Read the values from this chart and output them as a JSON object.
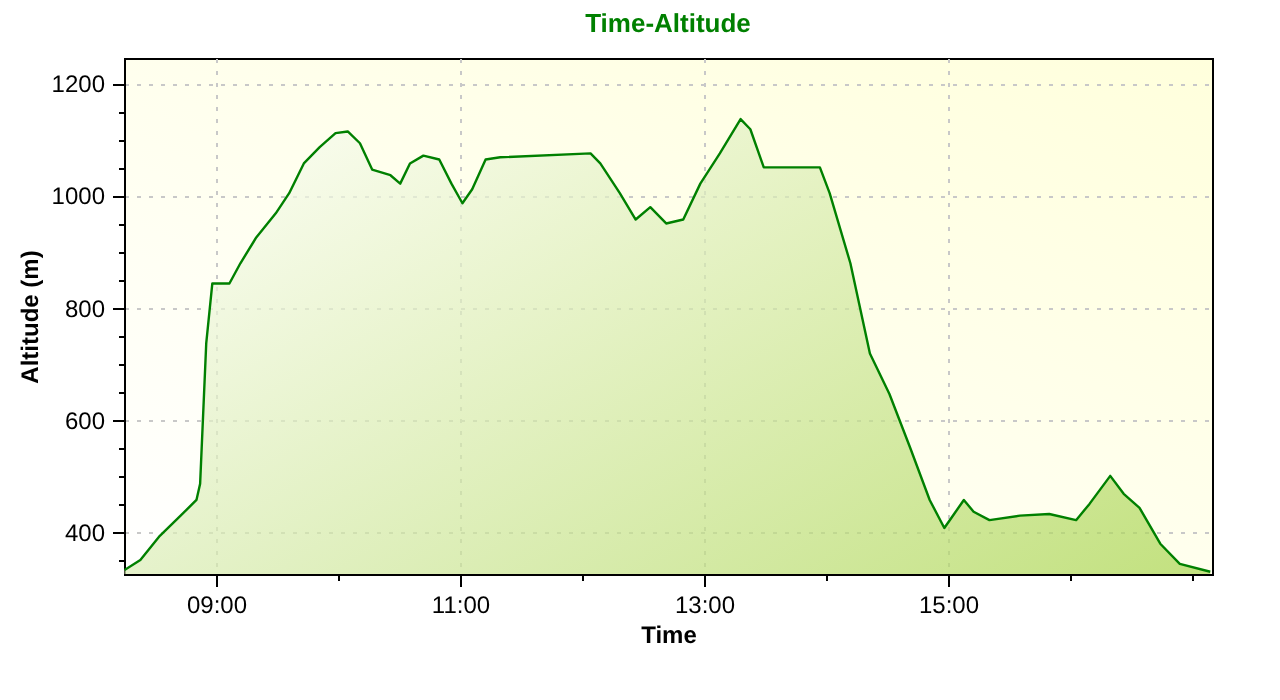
{
  "chart_data": {
    "type": "area",
    "title": "Time-Altitude",
    "xlabel": "Time",
    "ylabel": "Altitude (m)",
    "x": [
      8.25,
      8.38,
      8.54,
      8.71,
      8.84,
      8.87,
      8.92,
      8.97,
      9.11,
      9.2,
      9.33,
      9.49,
      9.6,
      9.72,
      9.85,
      9.98,
      10.08,
      10.18,
      10.28,
      10.43,
      10.51,
      10.59,
      10.7,
      10.83,
      10.93,
      11.02,
      11.1,
      11.21,
      11.33,
      12.07,
      12.15,
      12.31,
      12.44,
      12.56,
      12.69,
      12.83,
      12.97,
      13.13,
      13.3,
      13.38,
      13.49,
      13.95,
      14.03,
      14.2,
      14.36,
      14.52,
      14.69,
      14.85,
      14.97,
      15.05,
      15.13,
      15.21,
      15.34,
      15.59,
      15.83,
      16.05,
      16.16,
      16.33,
      16.44,
      16.57,
      16.74,
      16.9,
      17.15
    ],
    "series": [
      {
        "color": "#008000",
        "values": [
          332,
          350,
          393,
          429,
          457,
          486,
          736,
          843,
          843,
          879,
          925,
          968,
          1004,
          1057,
          1086,
          1111,
          1114,
          1093,
          1046,
          1036,
          1021,
          1057,
          1071,
          1064,
          1021,
          986,
          1011,
          1064,
          1068,
          1075,
          1057,
          1004,
          957,
          979,
          950,
          957,
          1021,
          1075,
          1136,
          1118,
          1050,
          1050,
          1004,
          879,
          718,
          646,
          550,
          457,
          407,
          432,
          457,
          436,
          421,
          429,
          432,
          421,
          450,
          500,
          468,
          443,
          379,
          343,
          329
        ]
      }
    ],
    "xlim": [
      8.246,
      17.164
    ],
    "xticks": [
      {
        "value": 9,
        "label": "09:00"
      },
      {
        "value": 10,
        "label": null
      },
      {
        "value": 11,
        "label": "11:00"
      },
      {
        "value": 12,
        "label": null
      },
      {
        "value": 13,
        "label": "13:00"
      },
      {
        "value": 14,
        "label": null
      },
      {
        "value": 15,
        "label": "15:00"
      },
      {
        "value": 16,
        "label": null
      },
      {
        "value": 17,
        "label": null
      }
    ],
    "ylim": [
      325,
      1245
    ],
    "yticks": [
      {
        "value": 350,
        "label": null
      },
      400,
      {
        "value": 450,
        "label": null
      },
      {
        "value": 500,
        "label": null
      },
      {
        "value": 550,
        "label": null
      },
      600,
      {
        "value": 650,
        "label": null
      },
      {
        "value": 700,
        "label": null
      },
      {
        "value": 750,
        "label": null
      },
      800,
      {
        "value": 850,
        "label": null
      },
      {
        "value": 900,
        "label": null
      },
      {
        "value": 950,
        "label": null
      },
      1000,
      {
        "value": 1050,
        "label": null
      },
      {
        "value": 1100,
        "label": null
      },
      {
        "value": 1150,
        "label": null
      },
      1200
    ],
    "grid": true
  }
}
